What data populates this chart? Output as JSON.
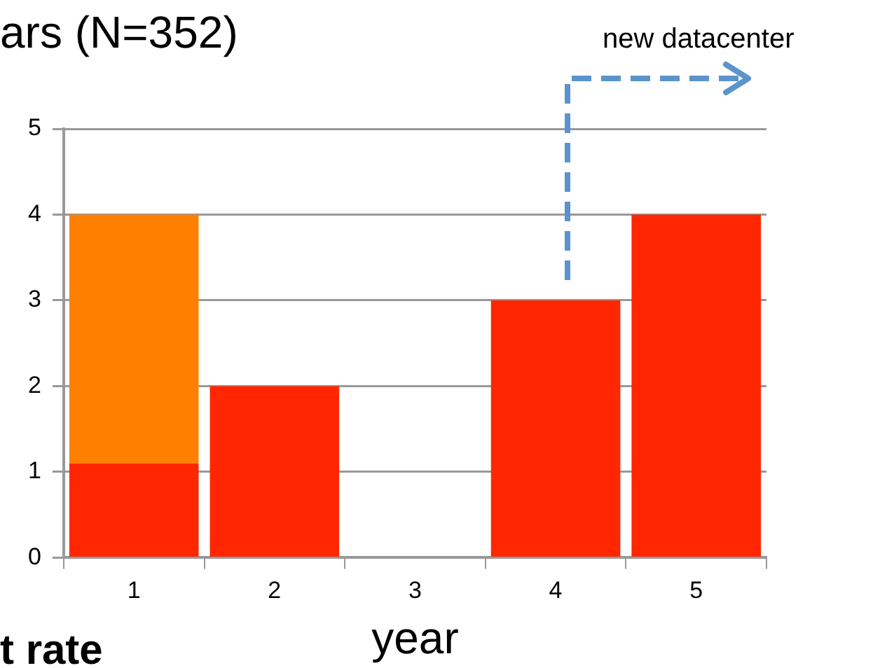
{
  "chart_data": {
    "type": "bar",
    "title": "ars (N=352)",
    "xlabel": "year",
    "categories": [
      "1",
      "2",
      "3",
      "4",
      "5"
    ],
    "stacked": true,
    "ylim": [
      0,
      5
    ],
    "yticks": [
      0,
      1,
      2,
      3,
      4,
      5
    ],
    "grid": "y",
    "legend": false,
    "series": [
      {
        "color": "#ff2600",
        "values": [
          1.1,
          2,
          0,
          3,
          4
        ]
      },
      {
        "color": "#ff7f00",
        "values": [
          2.9,
          null,
          null,
          null,
          null
        ]
      }
    ],
    "annotations": [
      "new datacenter",
      "t rate"
    ]
  }
}
